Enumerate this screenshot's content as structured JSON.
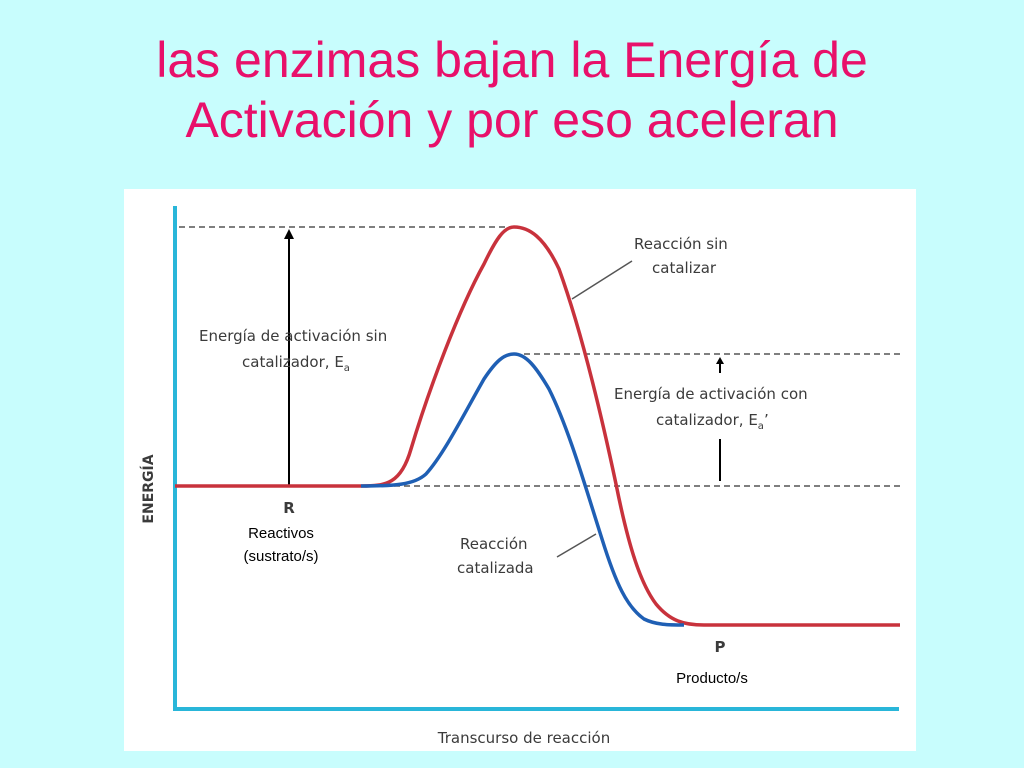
{
  "title": {
    "line1": "las enzimas bajan la Energía de",
    "line2": "Activación y por eso aceleran"
  },
  "diagram": {
    "y_axis_label": "ENERGÍA",
    "x_axis_label": "Transcurso de reacción",
    "reactant_marker": "R",
    "reactant_label_line1": "Reactivos",
    "reactant_label_line2": "(sustrato/s)",
    "product_marker": "P",
    "product_label": "Producto/s",
    "uncatalyzed_curve_label_line1": "Reacción sin",
    "uncatalyzed_curve_label_line2": "catalizar",
    "catalyzed_curve_label_line1": "Reacción",
    "catalyzed_curve_label_line2": "catalizada",
    "ea_uncatalyzed_line1": "Energía de activación sin",
    "ea_uncatalyzed_line2": "catalizador, E",
    "ea_uncatalyzed_sub": "a",
    "ea_catalyzed_line1": "Energía de activación con",
    "ea_catalyzed_line2": "catalizador, E",
    "ea_catalyzed_sub": "a",
    "ea_catalyzed_prime": "’",
    "colors": {
      "uncatalyzed": "#c8323c",
      "catalyzed": "#1f5fb4",
      "axis": "#29b6d9",
      "title": "#e8106a"
    }
  }
}
